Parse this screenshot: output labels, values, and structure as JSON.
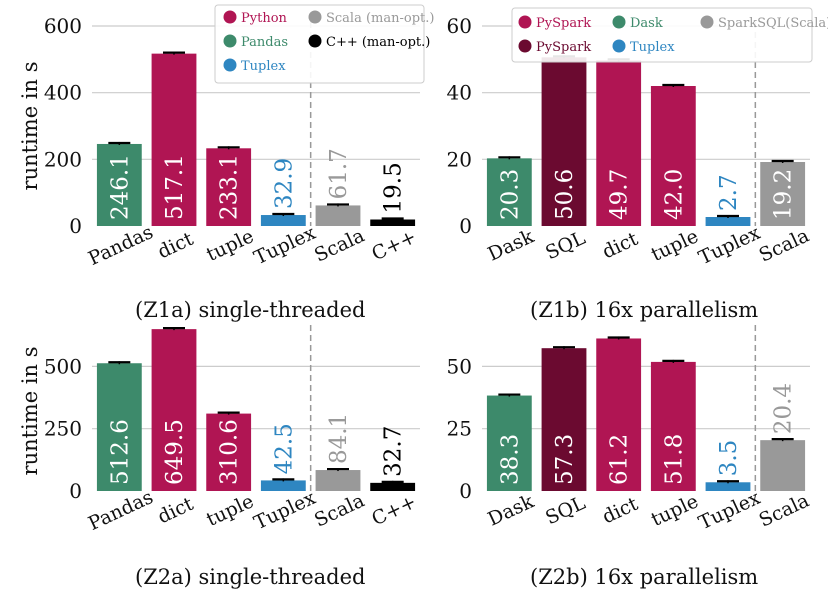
{
  "figure": {
    "ylabel_top": "runtime in s",
    "ylabel_bottom": "runtime in s"
  },
  "colors": {
    "green": "#3d8a6b",
    "crimson": "#b01553",
    "darkred": "#6b0a30",
    "blue": "#2e86c1",
    "gray": "#999999",
    "black": "#000000"
  },
  "chart_data": [
    {
      "id": "Z1a",
      "type": "bar",
      "caption": "(Z1a) single-threaded",
      "ylabel": "runtime in s",
      "ylim": [
        0,
        600
      ],
      "yticks": [
        0,
        200,
        400,
        600
      ],
      "grid": true,
      "separator_after_index": 3,
      "categories": [
        "Pandas",
        "dict",
        "tuple",
        "Tuplex",
        "Scala",
        "C++"
      ],
      "values": [
        246.1,
        517.1,
        233.1,
        32.9,
        61.7,
        19.5
      ],
      "labels": [
        "246.1",
        "517.1",
        "233.1",
        "32.9",
        "61.7",
        "19.5"
      ],
      "colors": [
        "green",
        "crimson",
        "crimson",
        "blue",
        "gray",
        "black"
      ],
      "label_inside": [
        true,
        true,
        true,
        false,
        false,
        false
      ],
      "legend": {
        "placement": "top-right",
        "columns": 2,
        "entries": [
          {
            "name": "Python",
            "color": "crimson"
          },
          {
            "name": "Scala (man-opt.)",
            "color": "gray"
          },
          {
            "name": "Pandas",
            "color": "green"
          },
          {
            "name": "C++ (man-opt.)",
            "color": "black"
          },
          {
            "name": "Tuplex",
            "color": "blue"
          }
        ]
      }
    },
    {
      "id": "Z1b",
      "type": "bar",
      "caption": "(Z1b) 16x parallelism",
      "ylabel": "",
      "ylim": [
        0,
        60
      ],
      "yticks": [
        0,
        20,
        40,
        60
      ],
      "grid": true,
      "separator_after_index": 4,
      "categories": [
        "Dask",
        "SQL",
        "dict",
        "tuple",
        "Tuplex",
        "Scala"
      ],
      "values": [
        20.3,
        50.6,
        49.7,
        42.0,
        2.7,
        19.2
      ],
      "labels": [
        "20.3",
        "50.6",
        "49.7",
        "42.0",
        "2.7",
        "19.2"
      ],
      "colors": [
        "green",
        "darkred",
        "crimson",
        "crimson",
        "blue",
        "gray"
      ],
      "label_inside": [
        true,
        true,
        true,
        true,
        false,
        true
      ],
      "legend": {
        "placement": "top",
        "columns": 3,
        "entries": [
          {
            "name": "PySpark",
            "color": "crimson"
          },
          {
            "name": "Dask",
            "color": "green"
          },
          {
            "name": "SparkSQL(Scala)",
            "color": "gray"
          },
          {
            "name": "PySpark",
            "color": "darkred"
          },
          {
            "name": "Tuplex",
            "color": "blue"
          }
        ]
      }
    },
    {
      "id": "Z2a",
      "type": "bar",
      "caption": "(Z2a) single-threaded",
      "ylabel": "runtime in s",
      "ylim": [
        0,
        650
      ],
      "yticks": [
        0,
        250,
        500
      ],
      "grid": true,
      "separator_after_index": 3,
      "categories": [
        "Pandas",
        "dict",
        "tuple",
        "Tuplex",
        "Scala",
        "C++"
      ],
      "values": [
        512.6,
        649.5,
        310.6,
        42.5,
        84.1,
        32.7
      ],
      "labels": [
        "512.6",
        "649.5",
        "310.6",
        "42.5",
        "84.1",
        "32.7"
      ],
      "colors": [
        "green",
        "crimson",
        "crimson",
        "blue",
        "gray",
        "black"
      ],
      "label_inside": [
        true,
        true,
        true,
        false,
        false,
        false
      ]
    },
    {
      "id": "Z2b",
      "type": "bar",
      "caption": "(Z2b) 16x parallelism",
      "ylabel": "",
      "ylim": [
        0,
        65
      ],
      "yticks": [
        0,
        25,
        50
      ],
      "grid": true,
      "separator_after_index": 4,
      "categories": [
        "Dask",
        "SQL",
        "dict",
        "tuple",
        "Tuplex",
        "Scala"
      ],
      "values": [
        38.3,
        57.3,
        61.2,
        51.8,
        3.5,
        20.4
      ],
      "labels": [
        "38.3",
        "57.3",
        "61.2",
        "51.8",
        "3.5",
        "20.4"
      ],
      "colors": [
        "green",
        "darkred",
        "crimson",
        "crimson",
        "blue",
        "gray"
      ],
      "label_inside": [
        true,
        true,
        true,
        true,
        false,
        false
      ]
    }
  ]
}
